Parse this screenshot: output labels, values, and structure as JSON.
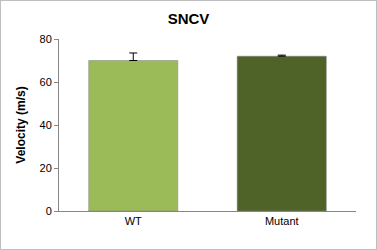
{
  "chart_data": {
    "type": "bar",
    "title": "SNCV",
    "y_label": "Velocity (m/s)",
    "categories": [
      "WT",
      "Mutant"
    ],
    "values": [
      70,
      72
    ],
    "errors": [
      3.5,
      0.5
    ],
    "colors": [
      "#9bbb59",
      "#4f6228"
    ],
    "ylim": [
      0,
      80
    ],
    "yticks": [
      0,
      20,
      40,
      60,
      80
    ],
    "grid": false
  }
}
